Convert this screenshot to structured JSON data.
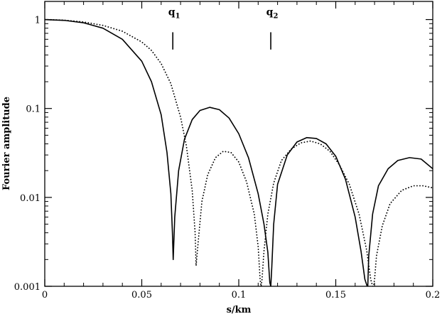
{
  "chart_data": {
    "type": "line",
    "title": "",
    "xlabel": "s/km",
    "ylabel": "Fourier amplitude",
    "xlim": [
      0,
      0.2
    ],
    "ylim": [
      0.001,
      1.6
    ],
    "yscale": "log",
    "grid": false,
    "x_ticks": [
      {
        "value": 0,
        "label": "0"
      },
      {
        "value": 0.05,
        "label": "0.05"
      },
      {
        "value": 0.1,
        "label": "0.1"
      },
      {
        "value": 0.15,
        "label": "0.15"
      },
      {
        "value": 0.2,
        "label": "0.2"
      }
    ],
    "y_ticks": [
      {
        "value": 0.001,
        "label": "0.001"
      },
      {
        "value": 0.01,
        "label": "0.01"
      },
      {
        "value": 0.1,
        "label": "0.1"
      },
      {
        "value": 1,
        "label": "1"
      }
    ],
    "markers": [
      {
        "name": "q",
        "sub": "1",
        "x": 0.066,
        "y_top": 0.72,
        "y_bottom": 0.46
      },
      {
        "name": "q",
        "sub": "2",
        "x": 0.1165,
        "y_top": 0.72,
        "y_bottom": 0.46
      }
    ],
    "series": [
      {
        "style": "solid",
        "x": [
          0,
          0.01,
          0.02,
          0.03,
          0.04,
          0.05,
          0.055,
          0.06,
          0.063,
          0.065,
          0.0658,
          0.0662,
          0.067,
          0.069,
          0.072,
          0.076,
          0.08,
          0.085,
          0.09,
          0.095,
          0.1,
          0.105,
          0.11,
          0.113,
          0.115,
          0.116,
          0.1165,
          0.117,
          0.118,
          0.12,
          0.125,
          0.13,
          0.135,
          0.14,
          0.145,
          0.15,
          0.155,
          0.16,
          0.163,
          0.165,
          0.1662,
          0.1665,
          0.167,
          0.169,
          0.172,
          0.177,
          0.182,
          0.188,
          0.194,
          0.2
        ],
        "y": [
          1.0,
          0.98,
          0.92,
          0.8,
          0.6,
          0.34,
          0.2,
          0.085,
          0.032,
          0.011,
          0.004,
          0.002,
          0.006,
          0.02,
          0.045,
          0.075,
          0.095,
          0.103,
          0.097,
          0.078,
          0.052,
          0.028,
          0.011,
          0.005,
          0.0024,
          0.0011,
          0.001,
          0.0016,
          0.005,
          0.014,
          0.03,
          0.042,
          0.047,
          0.046,
          0.04,
          0.029,
          0.016,
          0.006,
          0.0025,
          0.0012,
          0.001,
          0.001,
          0.0022,
          0.0065,
          0.0135,
          0.021,
          0.026,
          0.028,
          0.027,
          0.021
        ]
      },
      {
        "style": "dotted",
        "x": [
          0,
          0.01,
          0.02,
          0.03,
          0.04,
          0.05,
          0.055,
          0.06,
          0.065,
          0.07,
          0.073,
          0.076,
          0.0775,
          0.078,
          0.079,
          0.081,
          0.084,
          0.088,
          0.092,
          0.096,
          0.1,
          0.104,
          0.108,
          0.11,
          0.111,
          0.1115,
          0.112,
          0.113,
          0.115,
          0.118,
          0.122,
          0.127,
          0.132,
          0.137,
          0.142,
          0.147,
          0.152,
          0.157,
          0.162,
          0.166,
          0.168,
          0.169,
          0.1695,
          0.17,
          0.171,
          0.174,
          0.178,
          0.184,
          0.19,
          0.195,
          0.2
        ],
        "y": [
          1.0,
          0.985,
          0.94,
          0.86,
          0.74,
          0.56,
          0.45,
          0.32,
          0.19,
          0.08,
          0.038,
          0.012,
          0.004,
          0.0017,
          0.003,
          0.009,
          0.018,
          0.028,
          0.033,
          0.032,
          0.025,
          0.015,
          0.0065,
          0.0028,
          0.0012,
          0.001,
          0.0012,
          0.0025,
          0.0065,
          0.0145,
          0.026,
          0.035,
          0.041,
          0.043,
          0.04,
          0.033,
          0.023,
          0.014,
          0.0065,
          0.0025,
          0.0012,
          0.001,
          0.001,
          0.0012,
          0.0022,
          0.0048,
          0.0085,
          0.012,
          0.0135,
          0.0135,
          0.0128
        ]
      }
    ]
  }
}
